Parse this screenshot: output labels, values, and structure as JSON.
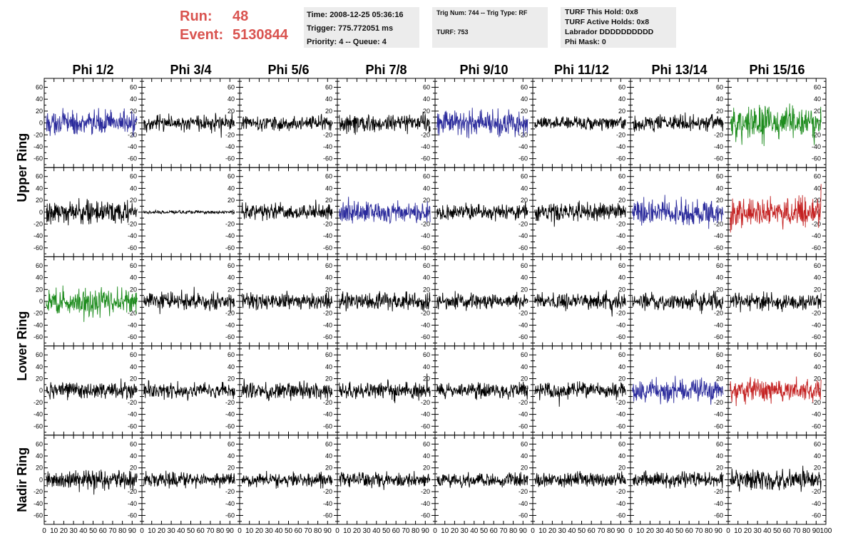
{
  "header": {
    "run_label": "Run:",
    "run_value": "48",
    "event_label": "Event:",
    "event_value": "5130844",
    "time": "Time: 2008-12-25 05:36:16",
    "trigger": "Trigger: 775.772051 ms",
    "priority": "Priority: 4 -- Queue: 4",
    "trig_num": "Trig Num: 744 -- Trig Type: RF",
    "turf": "TURF: 753",
    "turf_this_hold": "TURF This Hold: 0x8",
    "turf_active_holds": "TURF Active Holds: 0x8",
    "labrador": "Labrador DDDDDDDDDD",
    "phi_mask": "Phi Mask: 0"
  },
  "colors": {
    "header_red": "#d9534f",
    "trace_black": "#000000",
    "trace_blue": "#2b2b9c",
    "trace_green": "#1e8c1e",
    "trace_red": "#c42222",
    "info_bg": "#ececec"
  },
  "chart_data": {
    "type": "line",
    "title": "",
    "columns": [
      "Phi 1/2",
      "Phi 3/4",
      "Phi 5/6",
      "Phi 7/8",
      "Phi 9/10",
      "Phi 11/12",
      "Phi 13/14",
      "Phi 15/16"
    ],
    "rows": [
      "Upper Ring",
      "Upper Ring",
      "Lower Ring",
      "Lower Ring",
      "Nadir Ring"
    ],
    "row_labels": [
      "Upper Ring",
      "Lower Ring",
      "Nadir Ring"
    ],
    "xlim": [
      0,
      100
    ],
    "ylim": [
      -75,
      75
    ],
    "x_ticks": [
      0,
      10,
      20,
      30,
      40,
      50,
      60,
      70,
      80,
      90,
      100
    ],
    "x_tick_labels": [
      "0",
      "10",
      "20",
      "30",
      "40",
      "50",
      "60",
      "70",
      "80",
      "90",
      "100"
    ],
    "y_ticks": [
      -60,
      -40,
      -20,
      0,
      20,
      40,
      60
    ],
    "y_tick_labels": [
      "-60",
      "-40",
      "-20",
      "0",
      "20",
      "40",
      "60"
    ],
    "grid": false,
    "panel_trace_colors": [
      [
        "blue",
        "black",
        "black",
        "black",
        "blue",
        "black",
        "black",
        "green"
      ],
      [
        "black",
        "black",
        "black",
        "blue",
        "black",
        "black",
        "blue",
        "red"
      ],
      [
        "green",
        "black",
        "black",
        "black",
        "black",
        "black",
        "black",
        "black"
      ],
      [
        "black",
        "black",
        "black",
        "black",
        "black",
        "black",
        "blue",
        "red"
      ],
      [
        "black",
        "black",
        "black",
        "black",
        "black",
        "black",
        "black",
        "black"
      ]
    ],
    "panel_amplitudes": [
      [
        22,
        14,
        13,
        17,
        24,
        12,
        15,
        32
      ],
      [
        20,
        3,
        15,
        20,
        14,
        17,
        25,
        28
      ],
      [
        25,
        16,
        15,
        16,
        14,
        15,
        17,
        16
      ],
      [
        15,
        15,
        16,
        15,
        14,
        15,
        20,
        22
      ],
      [
        18,
        14,
        13,
        14,
        14,
        14,
        15,
        18
      ]
    ],
    "samples_per_trace": 256
  }
}
